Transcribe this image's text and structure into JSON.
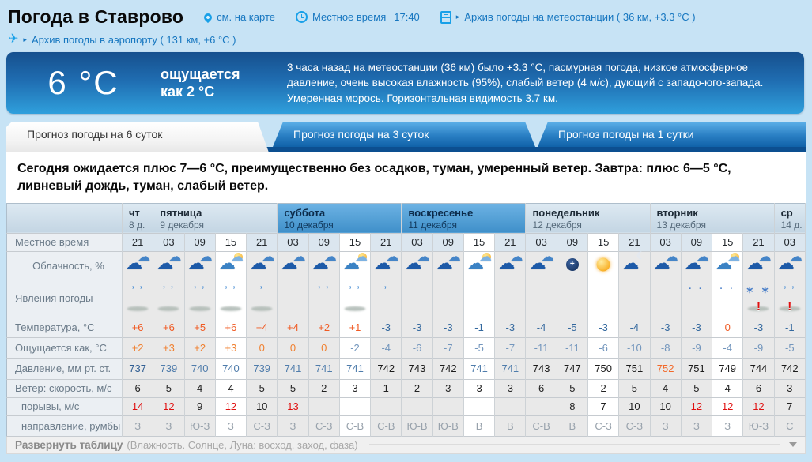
{
  "header": {
    "title": "Погода в Ставрово",
    "map_link": "см. на карте",
    "local_time_label": "Местное время",
    "local_time_value": "17:40",
    "station_archive": "Архив погоды на метеостанции ( 36 км, +3.3 °C )",
    "airport_archive": "Архив погоды в аэропорту ( 131 км, +6 °C )"
  },
  "banner": {
    "temperature": "6 °C",
    "feels_line1": "ощущается",
    "feels_line2": "как 2 °C",
    "description": "3 часа назад на метеостанции (36 км) было +3.3 °C, пасмурная погода, низкое атмосферное давление, очень высокая влажность (95%), слабый ветер (4 м/с), дующий с западо-юго-запада. Умеренная морось. Горизонтальная видимость 3.7 км."
  },
  "tabs": [
    {
      "label": "Прогноз погоды на 6 суток",
      "active": true
    },
    {
      "label": "Прогноз погоды на 3 суток",
      "active": false
    },
    {
      "label": "Прогноз погоды на 1 сутки",
      "active": false
    }
  ],
  "summary": "Сегодня ожидается плюс 7—6 °C, преимущественно без осадков, туман, умеренный ветер. Завтра: плюс 6—5 °C, ливневый дождь, туман, слабый ветер.",
  "icons": {
    "cloud": "☁",
    "moon_crescent": "☾",
    "sparkle": "+",
    "warning": "!",
    "drizzle": "’ ’",
    "drop": "’",
    "rain": "’ ’",
    "snow": "∗ ∗",
    "snow_light": "· ·"
  },
  "colors": {
    "page_bg": "#c7e3f5",
    "banner_top": "#16508e",
    "banner_bottom": "#2f9fdc",
    "tab_blue": "#1062a8",
    "weekend_header": "#4896cf",
    "temp_positive": "#f05a23",
    "temp_negative": "#33689e",
    "pressure_high": "#f2692a",
    "gust_alert": "#e01010",
    "link_blue": "#1777c0"
  },
  "table": {
    "highlight_time": "15",
    "days": [
      {
        "name": "чт",
        "date": "8 д.",
        "cols": 1,
        "weekend": false
      },
      {
        "name": "пятница",
        "date": "9 декабря",
        "cols": 4,
        "weekend": false
      },
      {
        "name": "суббота",
        "date": "10 декабря",
        "cols": 4,
        "weekend": true
      },
      {
        "name": "воскресенье",
        "date": "11 декабря",
        "cols": 4,
        "weekend": true
      },
      {
        "name": "понедельник",
        "date": "12 декабря",
        "cols": 4,
        "weekend": false
      },
      {
        "name": "вторник",
        "date": "13 декабря",
        "cols": 4,
        "weekend": false
      },
      {
        "name": "ср",
        "date": "14 д.",
        "cols": 1,
        "weekend": false
      }
    ],
    "time": {
      "label": "Местное время",
      "values": [
        "21",
        "03",
        "09",
        "15",
        "21",
        "03",
        "09",
        "15",
        "21",
        "03",
        "09",
        "15",
        "21",
        "03",
        "09",
        "15",
        "21",
        "03",
        "09",
        "15",
        "21",
        "03"
      ]
    },
    "clouds": {
      "label": "Облачность, %",
      "icons": [
        "clouds",
        "clouds",
        "clouds",
        "cloud-sun",
        "clouds",
        "clouds",
        "clouds",
        "cloud-sun",
        "clouds",
        "clouds",
        "clouds",
        "cloud-sun",
        "clouds",
        "clouds",
        "moon",
        "sun",
        "cloud-moon",
        "clouds",
        "clouds",
        "cloud-sun",
        "clouds",
        "clouds"
      ]
    },
    "phenomena": {
      "label": "Явления погоды",
      "cells": [
        {
          "p": "drizzle",
          "f": true
        },
        {
          "p": "drizzle",
          "f": true
        },
        {
          "p": "drizzle",
          "f": true
        },
        {
          "p": "drizzle",
          "f": true
        },
        {
          "p": "drop",
          "f": true
        },
        {},
        {
          "p": "drizzle"
        },
        {
          "p": "drizzle",
          "f": true
        },
        {
          "p": "drop"
        },
        {},
        {},
        {},
        {},
        {},
        {},
        {},
        {},
        {},
        {
          "p": "snow_light"
        },
        {
          "p": "snow_light"
        },
        {
          "p": "snow",
          "f": true,
          "w": true
        },
        {
          "p": "rain",
          "f": true,
          "w": true
        }
      ]
    },
    "temperature": {
      "label": "Температура, °C",
      "values": [
        "+6",
        "+6",
        "+5",
        "+6",
        "+4",
        "+4",
        "+2",
        "+1",
        "-3",
        "-3",
        "-3",
        "-1",
        "-3",
        "-4",
        "-5",
        "-3",
        "-4",
        "-3",
        "-3",
        "0",
        "-3",
        "-1"
      ],
      "cls": [
        "tpos",
        "tpos",
        "tpos",
        "tpos",
        "tpos",
        "tpos",
        "tpos",
        "tpos",
        "tneg",
        "tneg",
        "tneg",
        "tneg",
        "tneg",
        "tneg",
        "tneg",
        "tneg",
        "tneg",
        "tneg",
        "tneg",
        "tpos",
        "tneg",
        "tneg"
      ]
    },
    "feels": {
      "label": "Ощущается как, °C",
      "values": [
        "+2",
        "+3",
        "+2",
        "+3",
        "0",
        "0",
        "0",
        "-2",
        "-4",
        "-6",
        "-7",
        "-5",
        "-7",
        "-11",
        "-11",
        "-6",
        "-10",
        "-8",
        "-9",
        "-4",
        "-9",
        "-5"
      ],
      "cls": [
        "fpos",
        "fpos",
        "fpos",
        "fpos",
        "fpos",
        "fpos",
        "fpos",
        "fneg",
        "fneg",
        "fneg",
        "fneg",
        "fneg",
        "fneg",
        "fneg",
        "fneg",
        "fneg",
        "fneg",
        "fneg",
        "fneg",
        "fneg",
        "fneg",
        "fneg"
      ]
    },
    "pressure": {
      "label": "Давление, мм рт. ст.",
      "values": [
        "737",
        "739",
        "740",
        "740",
        "739",
        "741",
        "741",
        "741",
        "742",
        "743",
        "742",
        "741",
        "741",
        "743",
        "747",
        "750",
        "751",
        "752",
        "751",
        "749",
        "744",
        "742"
      ],
      "cls": [
        "plowb",
        "plow",
        "plow",
        "plow",
        "plow",
        "plow",
        "plow",
        "plow",
        "pnorm",
        "pnorm",
        "pnorm",
        "plow",
        "plow",
        "pnorm",
        "pnorm",
        "pnorm",
        "pnorm",
        "phigh",
        "pnorm",
        "pnorm",
        "pnorm",
        "pnorm"
      ]
    },
    "wind_speed": {
      "label": "Ветер: скорость, м/с",
      "values": [
        "6",
        "5",
        "4",
        "4",
        "5",
        "5",
        "2",
        "3",
        "1",
        "2",
        "3",
        "3",
        "3",
        "6",
        "5",
        "2",
        "5",
        "4",
        "5",
        "4",
        "6",
        "3"
      ],
      "cls": [
        "gb",
        "gb",
        "gb",
        "gb",
        "gb",
        "gb",
        "gb",
        "gb",
        "gb",
        "gb",
        "gb",
        "gb",
        "gb",
        "gb",
        "gb",
        "gb",
        "gb",
        "gb",
        "gb",
        "gb",
        "gb",
        "gb"
      ]
    },
    "wind_gusts": {
      "label": "порывы, м/с",
      "values": [
        "14",
        "12",
        "9",
        "12",
        "10",
        "13",
        "",
        "",
        "",
        "",
        "",
        "",
        "",
        "",
        "8",
        "7",
        "10",
        "10",
        "12",
        "12",
        "12",
        "7"
      ],
      "cls": [
        "gr",
        "gr",
        "gb",
        "gr",
        "gb",
        "gr",
        "",
        "",
        "",
        "",
        "",
        "",
        "",
        "",
        "gb",
        "gb",
        "gb",
        "gb",
        "gr",
        "gr",
        "gr",
        "gb"
      ]
    },
    "wind_dir": {
      "label": "направление, румбы",
      "values": [
        "З",
        "З",
        "Ю-З",
        "З",
        "С-З",
        "З",
        "С-З",
        "С-В",
        "С-В",
        "Ю-В",
        "Ю-В",
        "В",
        "В",
        "С-В",
        "В",
        "С-З",
        "С-З",
        "З",
        "З",
        "З",
        "Ю-З",
        "С"
      ],
      "cls": [
        "dir",
        "dir",
        "dir",
        "dir",
        "dir",
        "dir",
        "dir",
        "dir",
        "dir",
        "dir",
        "dir",
        "dir",
        "dir",
        "dir",
        "dir",
        "dir",
        "dir",
        "dir",
        "dir",
        "dir",
        "dir",
        "dir"
      ]
    }
  },
  "footer": {
    "expand_label": "Развернуть таблицу",
    "expand_note": "(Влажность. Солнце, Луна: восход, заход, фаза)"
  }
}
